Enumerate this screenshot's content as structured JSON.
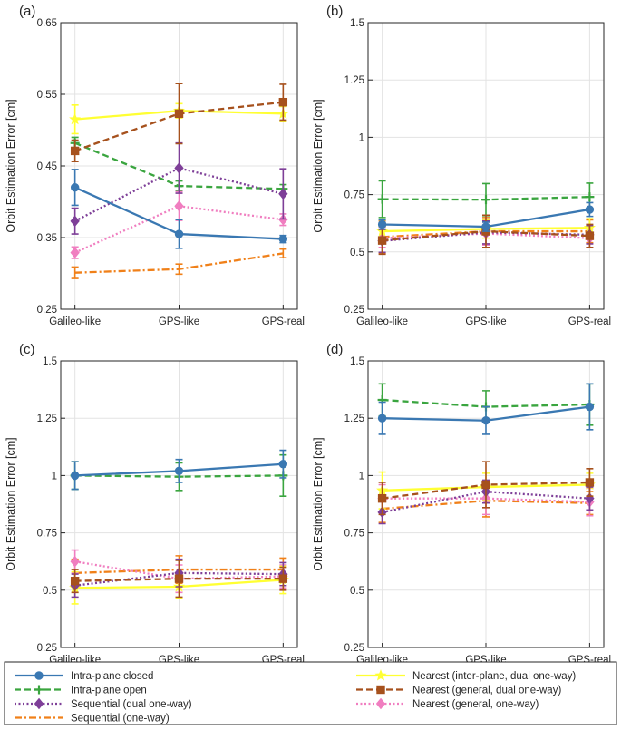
{
  "chart_data": [
    {
      "type": "line",
      "panel_label": "(a)",
      "ylabel": "Orbit Estimation Error [cm]",
      "categories": [
        "Galileo-like",
        "GPS-like",
        "GPS-real"
      ],
      "ylim": [
        0.25,
        0.65
      ],
      "yticks": [
        "0.25",
        "0.35",
        "0.45",
        "0.55",
        "0.65"
      ],
      "grid": true,
      "series": [
        {
          "name": "Intra-plane closed",
          "values": [
            0.42,
            0.355,
            0.348
          ],
          "err": [
            0.025,
            0.02,
            0.005
          ]
        },
        {
          "name": "Intra-plane open",
          "values": [
            0.482,
            0.422,
            0.418
          ],
          "err": [
            0.008,
            0.007,
            0.006
          ]
        },
        {
          "name": "Sequential (dual one-way)",
          "values": [
            0.373,
            0.447,
            0.411
          ],
          "err": [
            0.018,
            0.035,
            0.035
          ]
        },
        {
          "name": "Sequential (one-way)",
          "values": [
            0.301,
            0.306,
            0.328
          ],
          "err": [
            0.008,
            0.007,
            0.006
          ]
        },
        {
          "name": "Nearest (inter-plane, dual one-way)",
          "values": [
            0.515,
            0.527,
            0.523
          ],
          "err": [
            0.02,
            0.01,
            0.01
          ]
        },
        {
          "name": "Nearest (general, dual one-way)",
          "values": [
            0.471,
            0.523,
            0.539
          ],
          "err": [
            0.015,
            0.042,
            0.025
          ]
        },
        {
          "name": "Nearest (general, one-way)",
          "values": [
            0.329,
            0.394,
            0.375
          ],
          "err": [
            0.008,
            0.02,
            0.008
          ]
        }
      ]
    },
    {
      "type": "line",
      "panel_label": "(b)",
      "ylabel": "Orbit Estimation Error [cm]",
      "categories": [
        "Galileo-like",
        "GPS-like",
        "GPS-real"
      ],
      "ylim": [
        0.25,
        1.5
      ],
      "yticks": [
        "0.25",
        "0.5",
        "0.75",
        "1",
        "1.25",
        "1.5"
      ],
      "grid": true,
      "series": [
        {
          "name": "Intra-plane closed",
          "values": [
            0.62,
            0.61,
            0.685
          ],
          "err": [
            0.02,
            0.02,
            0.03
          ]
        },
        {
          "name": "Intra-plane open",
          "values": [
            0.73,
            0.728,
            0.74
          ],
          "err": [
            0.08,
            0.07,
            0.06
          ]
        },
        {
          "name": "Sequential (dual one-way)",
          "values": [
            0.548,
            0.585,
            0.575
          ],
          "err": [
            0.05,
            0.05,
            0.04
          ]
        },
        {
          "name": "Sequential (one-way)",
          "values": [
            0.565,
            0.59,
            0.59
          ],
          "err": [
            0.07,
            0.06,
            0.05
          ]
        },
        {
          "name": "Nearest (inter-plane, dual one-way)",
          "values": [
            0.59,
            0.6,
            0.605
          ],
          "err": [
            0.05,
            0.04,
            0.04
          ]
        },
        {
          "name": "Nearest (general, dual one-way)",
          "values": [
            0.55,
            0.59,
            0.57
          ],
          "err": [
            0.06,
            0.07,
            0.05
          ]
        },
        {
          "name": "Nearest (general, one-way)",
          "values": [
            0.56,
            0.58,
            0.56
          ],
          "err": [
            0.04,
            0.05,
            0.04
          ]
        }
      ]
    },
    {
      "type": "line",
      "panel_label": "(c)",
      "ylabel": "Orbit Estimation Error [cm]",
      "categories": [
        "Galileo-like",
        "GPS-like",
        "GPS-real"
      ],
      "ylim": [
        0.25,
        1.5
      ],
      "yticks": [
        "0.25",
        "0.5",
        "0.75",
        "1",
        "1.25",
        "1.5"
      ],
      "grid": true,
      "series": [
        {
          "name": "Intra-plane closed",
          "values": [
            1.0,
            1.02,
            1.05
          ],
          "err": [
            0.06,
            0.05,
            0.06
          ]
        },
        {
          "name": "Intra-plane open",
          "values": [
            1.0,
            0.995,
            1.0
          ],
          "err": [
            0.06,
            0.06,
            0.09
          ]
        },
        {
          "name": "Sequential (dual one-way)",
          "values": [
            0.52,
            0.575,
            0.57
          ],
          "err": [
            0.05,
            0.06,
            0.05
          ]
        },
        {
          "name": "Sequential (one-way)",
          "values": [
            0.575,
            0.59,
            0.59
          ],
          "err": [
            0.06,
            0.06,
            0.05
          ]
        },
        {
          "name": "Nearest (inter-plane, dual one-way)",
          "values": [
            0.51,
            0.515,
            0.545
          ],
          "err": [
            0.07,
            0.05,
            0.06
          ]
        },
        {
          "name": "Nearest (general, dual one-way)",
          "values": [
            0.54,
            0.55,
            0.55
          ],
          "err": [
            0.05,
            0.08,
            0.05
          ]
        },
        {
          "name": "Nearest (general, one-way)",
          "values": [
            0.625,
            0.55,
            0.56
          ],
          "err": [
            0.05,
            0.06,
            0.05
          ]
        }
      ]
    },
    {
      "type": "line",
      "panel_label": "(d)",
      "ylabel": "Orbit Estimation Error [cm]",
      "categories": [
        "Galileo-like",
        "GPS-like",
        "GPS-real"
      ],
      "ylim": [
        0.25,
        1.5
      ],
      "yticks": [
        "0.25",
        "0.5",
        "0.75",
        "1",
        "1.25",
        "1.5"
      ],
      "grid": true,
      "series": [
        {
          "name": "Intra-plane closed",
          "values": [
            1.25,
            1.24,
            1.3
          ],
          "err": [
            0.07,
            0.06,
            0.1
          ]
        },
        {
          "name": "Intra-plane open",
          "values": [
            1.33,
            1.3,
            1.31
          ],
          "err": [
            0.07,
            0.07,
            0.09
          ]
        },
        {
          "name": "Sequential (dual one-way)",
          "values": [
            0.84,
            0.93,
            0.9
          ],
          "err": [
            0.05,
            0.05,
            0.05
          ]
        },
        {
          "name": "Sequential (one-way)",
          "values": [
            0.855,
            0.89,
            0.88
          ],
          "err": [
            0.06,
            0.07,
            0.05
          ]
        },
        {
          "name": "Nearest (inter-plane, dual one-way)",
          "values": [
            0.935,
            0.95,
            0.96
          ],
          "err": [
            0.08,
            0.06,
            0.05
          ]
        },
        {
          "name": "Nearest (general, dual one-way)",
          "values": [
            0.9,
            0.96,
            0.97
          ],
          "err": [
            0.07,
            0.1,
            0.06
          ]
        },
        {
          "name": "Nearest (general, one-way)",
          "values": [
            0.9,
            0.9,
            0.885
          ],
          "err": [
            0.06,
            0.07,
            0.06
          ]
        }
      ]
    }
  ],
  "legend": {
    "placement": "bottom",
    "entries": [
      {
        "name": "Intra-plane closed",
        "color": "#3a78b2",
        "dash": "solid",
        "marker": "circle"
      },
      {
        "name": "Intra-plane open",
        "color": "#3aa53f",
        "dash": "dashed",
        "marker": "plus"
      },
      {
        "name": "Sequential (dual one-way)",
        "color": "#7e3f98",
        "dash": "dotted",
        "marker": "diamond"
      },
      {
        "name": "Sequential (one-way)",
        "color": "#f08019",
        "dash": "dashdot",
        "marker": "none"
      },
      {
        "name": "Nearest (inter-plane, dual one-way)",
        "color": "#ffff33",
        "dash": "solid",
        "marker": "star"
      },
      {
        "name": "Nearest (general, dual one-way)",
        "color": "#a6511d",
        "dash": "dashed",
        "marker": "square"
      },
      {
        "name": "Nearest (general, one-way)",
        "color": "#f07ec0",
        "dash": "dotted",
        "marker": "diamond"
      }
    ]
  }
}
